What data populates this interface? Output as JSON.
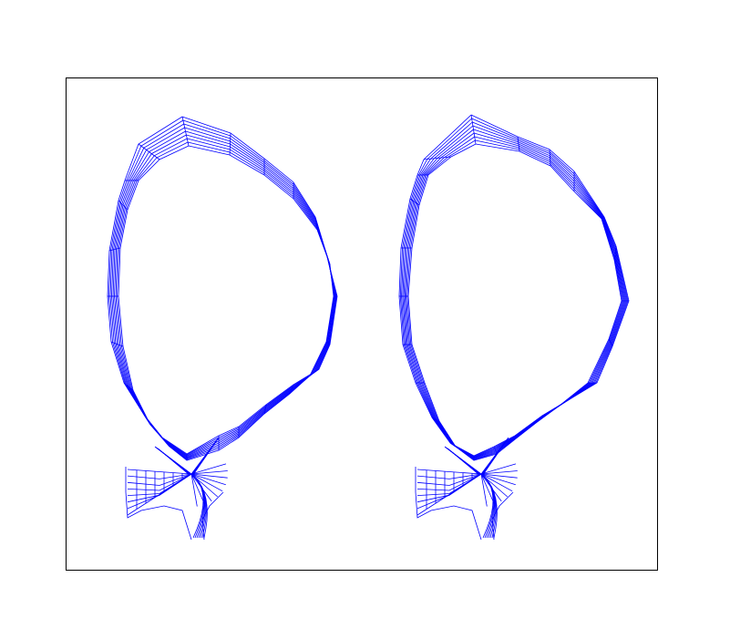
{
  "figure": {
    "panels": [
      {
        "name": "left-mesh-panel",
        "variant": "baseline"
      },
      {
        "name": "right-mesh-panel",
        "variant": "refined"
      }
    ],
    "mesh": {
      "radial_layers": 8,
      "poloidal_cells": 32,
      "divertor_legs": 2
    },
    "colors": {
      "mesh_line": "#0000ff",
      "frame": "#000000",
      "background": "#ffffff"
    }
  }
}
